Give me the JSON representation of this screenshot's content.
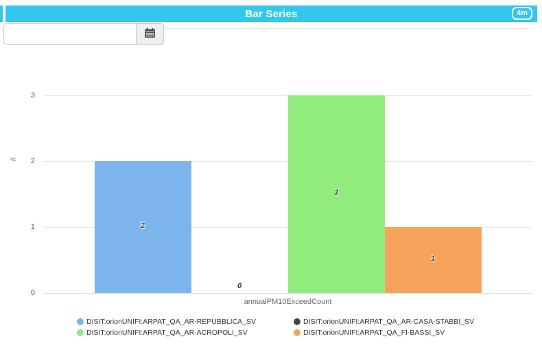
{
  "header": {
    "title": "Bar Series",
    "badge": "4m",
    "accent_color": "#33c7f0"
  },
  "toolbar": {
    "datetime_value": "",
    "datetime_placeholder": ""
  },
  "chart_data": {
    "type": "bar",
    "title": "Bar Series",
    "categories": [
      "annualPM10ExceedCount"
    ],
    "series": [
      {
        "name": "DISIT:orionUNIFI:ARPAT_QA_AR-REPUBBLICA_SV",
        "color": "#7cb5ec",
        "values": [
          2
        ]
      },
      {
        "name": "DISIT:orionUNIFI:ARPAT_QA_AR-CASA-STABBI_SV",
        "color": "#434348",
        "values": [
          0
        ]
      },
      {
        "name": "DISIT:orionUNIFI:ARPAT_QA_AR-ACROPOLI_SV",
        "color": "#90ed7d",
        "values": [
          3
        ]
      },
      {
        "name": "DISIT:orionUNIFI:ARPAT_QA_FI-BASSI_SV",
        "color": "#f7a35c",
        "values": [
          1
        ]
      }
    ],
    "xlabel": "annualPM10ExceedCount",
    "ylabel": "#",
    "yticks": [
      0,
      1,
      2,
      3
    ],
    "ylim": [
      0,
      3
    ],
    "grid": true,
    "grid_color": "#e6e6e6",
    "axis_line_color": "#ccd6eb",
    "legend_position": "bottom"
  }
}
